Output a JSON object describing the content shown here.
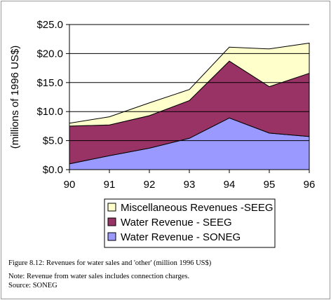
{
  "chart_data": {
    "type": "area",
    "stacked": true,
    "x": [
      "90",
      "91",
      "92",
      "93",
      "94",
      "95",
      "96"
    ],
    "ylabel": "(millions of 1996 US$)",
    "yticks": [
      "$0.0",
      "$5.0",
      "$10.0",
      "$15.0",
      "$20.0",
      "$25.0"
    ],
    "ylim": [
      0,
      25
    ],
    "grid": true,
    "legend_position": "bottom",
    "series": [
      {
        "name": "Water Revenue - SONEG",
        "color": "#9999ff",
        "values": [
          1.0,
          2.4,
          3.7,
          5.4,
          8.9,
          6.3,
          5.7
        ]
      },
      {
        "name": "Water Revenue - SEEG",
        "color": "#993366",
        "values": [
          6.5,
          5.3,
          5.6,
          6.5,
          9.8,
          8.0,
          10.9
        ]
      },
      {
        "name": "Miscellaneous Revenues -SEEG",
        "color": "#ffffcc",
        "values": [
          0.5,
          1.4,
          2.2,
          1.9,
          2.4,
          6.5,
          5.2
        ]
      }
    ],
    "legend_order": [
      2,
      1,
      0
    ]
  },
  "caption": {
    "figure": "Figure 8.12: Revenues for water sales and 'other' (million 1996 US$)",
    "note": "Note: Revenue from water sales includes connection charges.",
    "source": "Source: SONEG"
  }
}
